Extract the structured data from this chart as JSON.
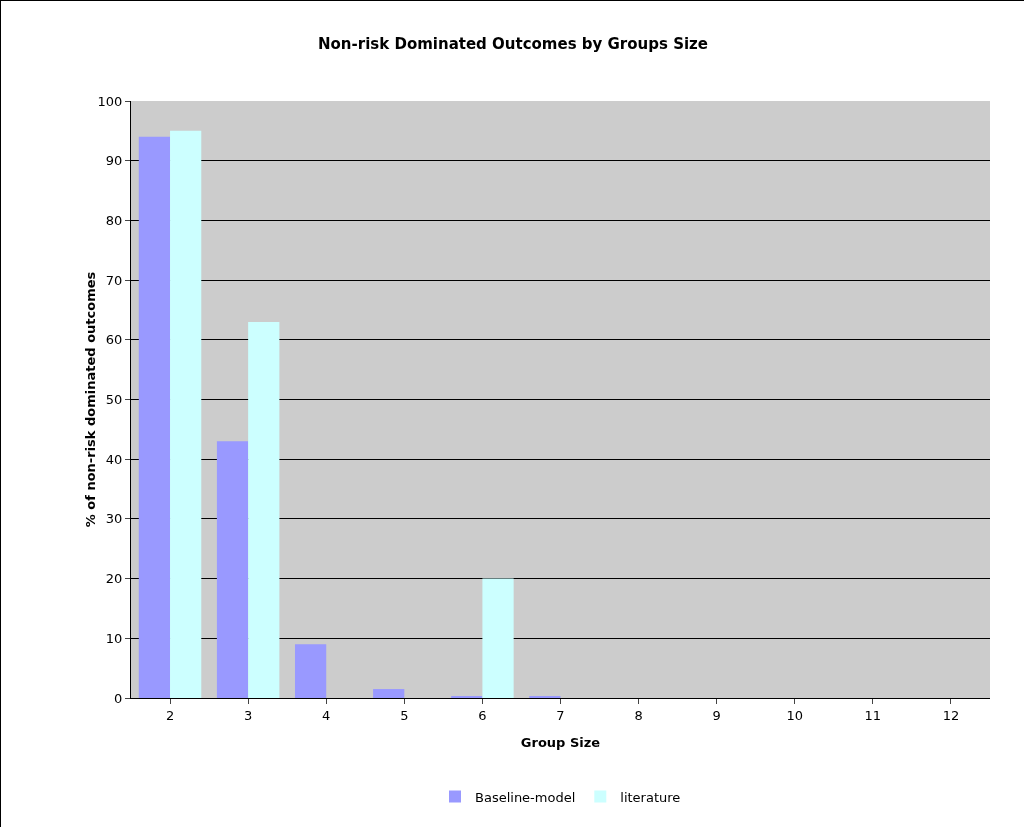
{
  "chart_data": {
    "type": "bar",
    "title": "Non-risk Dominated Outcomes by Groups Size",
    "xlabel": "Group Size",
    "ylabel": "% of non-risk dominated outcomes",
    "categories": [
      "2",
      "3",
      "4",
      "5",
      "6",
      "7",
      "8",
      "9",
      "10",
      "11",
      "12"
    ],
    "series": [
      {
        "name": "Baseline-model",
        "color": "#9999ff",
        "values": [
          94,
          43,
          9,
          1.5,
          0.3,
          0.3,
          0,
          0,
          0,
          0,
          0
        ]
      },
      {
        "name": "literature",
        "color": "#ccffff",
        "values": [
          95,
          63,
          null,
          null,
          20,
          null,
          0,
          0,
          null,
          null,
          0
        ]
      }
    ],
    "ylim": [
      0,
      100
    ],
    "yticks": [
      0,
      10,
      20,
      30,
      40,
      50,
      60,
      70,
      80,
      90,
      100
    ],
    "grid": "y",
    "legend": "bottom"
  }
}
